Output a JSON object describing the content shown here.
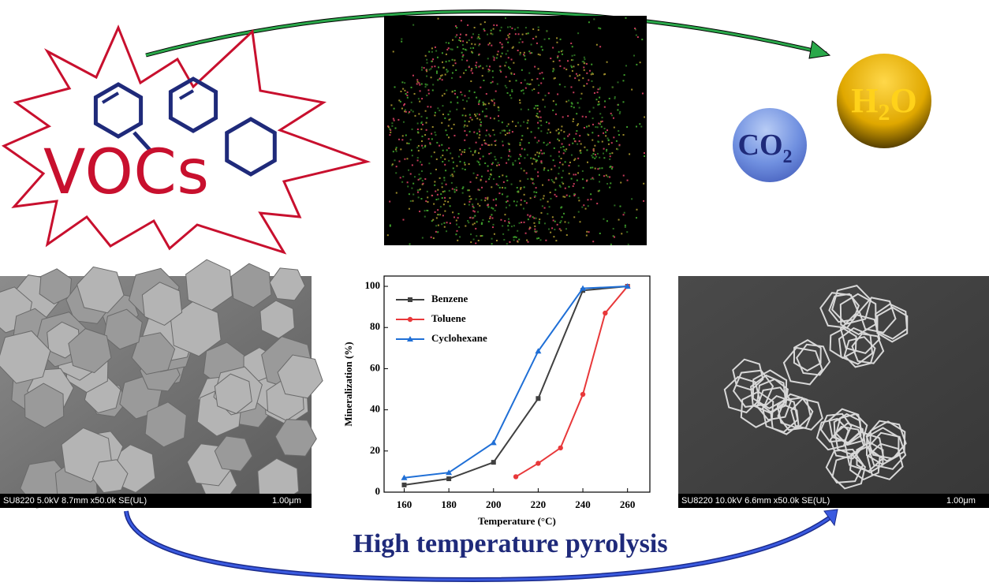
{
  "labels": {
    "vocs": "VOCs",
    "h2o": {
      "main": "H",
      "sub": "2",
      "tail": "O"
    },
    "co2": {
      "main": "CO",
      "sub": "2"
    },
    "process": "High temperature pyrolysis",
    "sem_left": {
      "caption": "SU8220 5.0kV 8.7mm x50.0k SE(UL)",
      "scale": "1.00μm"
    },
    "sem_right": {
      "caption": "SU8220 10.0kV 6.6mm x50.0k SE(UL)",
      "scale": "1.00μm"
    }
  },
  "chart_data": {
    "type": "line",
    "x_label": "Temperature (°C)",
    "y_label": "Mineralization (%)",
    "xlim": [
      151,
      270
    ],
    "ylim": [
      0,
      105
    ],
    "xticks": [
      160,
      180,
      200,
      220,
      240,
      260
    ],
    "yticks": [
      0,
      20,
      40,
      60,
      80,
      100
    ],
    "legend": "upper left",
    "series": [
      {
        "name": "Benzene",
        "color": "#404040",
        "marker": "square",
        "x": [
          160,
          180,
          200,
          220,
          240,
          260
        ],
        "values": [
          3.5,
          6.5,
          14.5,
          45.5,
          98,
          100
        ]
      },
      {
        "name": "Toluene",
        "color": "#e8383a",
        "marker": "circle",
        "x": [
          210,
          220,
          230,
          240,
          250,
          260
        ],
        "values": [
          7.5,
          14,
          21.5,
          47.5,
          87,
          100
        ]
      },
      {
        "name": "Cyclohexane",
        "color": "#1f6fd6",
        "marker": "triangle",
        "x": [
          160,
          180,
          200,
          220,
          240,
          260
        ],
        "values": [
          7,
          9.5,
          24,
          68.5,
          99,
          100
        ]
      }
    ]
  }
}
